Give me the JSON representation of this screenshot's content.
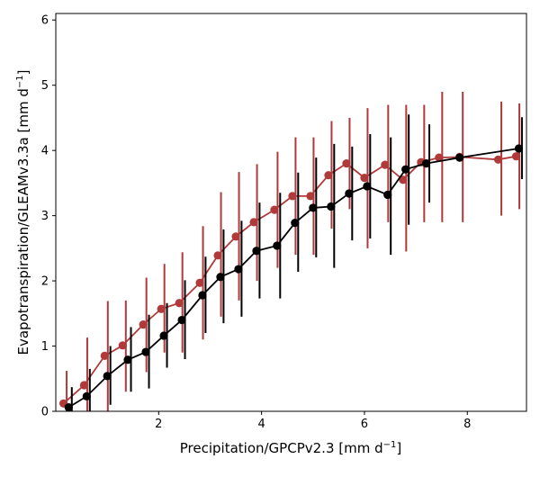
{
  "chart_data": {
    "type": "line",
    "title": "",
    "xlabel": "Precipitation/GPCPv2.3 [mm d",
    "xlabel_unit_exp": "−1",
    "xlabel_end": "]",
    "ylabel": "Evapotranspiration/GLEAMv3.3a [mm d",
    "ylabel_unit_exp": "−1",
    "ylabel_end": "]",
    "xlim": [
      0,
      9.15
    ],
    "ylim": [
      0,
      6.1
    ],
    "xticks": [
      2,
      4,
      6,
      8
    ],
    "xtick_labels": [
      "2",
      "4",
      "6",
      "8"
    ],
    "yticks": [
      0,
      1,
      2,
      3,
      4,
      5,
      6
    ],
    "ytick_labels": [
      "0",
      "1",
      "2",
      "3",
      "4",
      "5",
      "6"
    ],
    "grid": false,
    "legend": "none",
    "series": [
      {
        "color": "#b03a3a",
        "x": [
          0.15,
          0.55,
          0.95,
          1.3,
          1.7,
          2.05,
          2.4,
          2.8,
          3.15,
          3.5,
          3.85,
          4.25,
          4.6,
          4.95,
          5.3,
          5.65,
          6.0,
          6.4,
          6.75,
          7.1,
          7.45,
          7.85,
          8.6,
          8.95
        ],
        "y": [
          0.12,
          0.4,
          0.85,
          1.01,
          1.33,
          1.57,
          1.66,
          1.97,
          2.39,
          2.68,
          2.9,
          3.09,
          3.3,
          3.3,
          3.62,
          3.8,
          3.58,
          3.78,
          3.55,
          3.82,
          3.89,
          3.9,
          3.86,
          3.91
        ],
        "err_lo": [
          -0.4,
          -0.35,
          0.0,
          0.3,
          0.6,
          0.9,
          0.9,
          1.1,
          1.45,
          1.7,
          2.0,
          2.2,
          2.4,
          2.4,
          2.8,
          3.1,
          2.5,
          2.9,
          2.45,
          2.9,
          2.9,
          2.9,
          3.0,
          3.1
        ],
        "err_hi": [
          0.62,
          1.13,
          1.69,
          1.7,
          2.05,
          2.26,
          2.44,
          2.84,
          3.36,
          3.67,
          3.79,
          3.98,
          4.2,
          4.2,
          4.45,
          4.5,
          4.65,
          4.7,
          4.7,
          4.7,
          4.9,
          4.9,
          4.75,
          4.72
        ]
      },
      {
        "color": "#000000",
        "x": [
          0.25,
          0.6,
          1.0,
          1.4,
          1.75,
          2.1,
          2.45,
          2.85,
          3.2,
          3.55,
          3.9,
          4.3,
          4.65,
          5.0,
          5.35,
          5.7,
          6.05,
          6.45,
          6.8,
          7.2,
          7.85,
          9.0
        ],
        "y": [
          0.06,
          0.23,
          0.54,
          0.79,
          0.91,
          1.16,
          1.4,
          1.78,
          2.06,
          2.18,
          2.46,
          2.54,
          2.89,
          3.12,
          3.14,
          3.34,
          3.45,
          3.32,
          3.71,
          3.8,
          3.89,
          4.03
        ],
        "err_lo": [
          -0.2,
          -0.2,
          0.1,
          0.3,
          0.35,
          0.67,
          0.8,
          1.2,
          1.35,
          1.45,
          1.73,
          1.73,
          2.14,
          2.36,
          2.2,
          2.62,
          2.65,
          2.4,
          2.86,
          3.2,
          3.89,
          3.56
        ],
        "err_hi": [
          0.37,
          0.65,
          1.0,
          1.29,
          1.48,
          1.66,
          2.01,
          2.37,
          2.79,
          2.92,
          3.2,
          3.35,
          3.66,
          3.89,
          4.1,
          4.06,
          4.25,
          4.2,
          4.55,
          4.4,
          3.89,
          4.51
        ]
      }
    ]
  }
}
